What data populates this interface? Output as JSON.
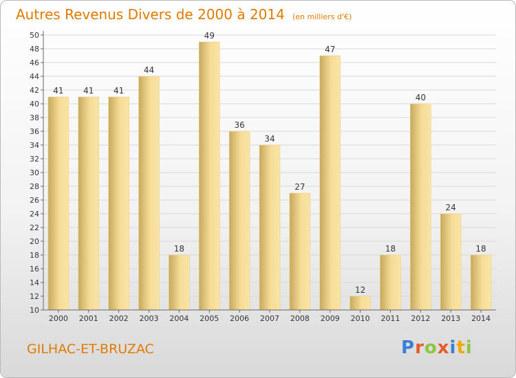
{
  "title": "Autres Revenus Divers de 2000 à 2014",
  "unit": "(en milliers d'€)",
  "commune": "GILHAC-ET-BRUZAC",
  "brand": {
    "text": "Proxiti",
    "letter_colors": [
      "#3a7fd5",
      "#e85a2a",
      "#8dc63f",
      "#e85a2a",
      "#3a7fd5",
      "#f0a800",
      "#8dc63f"
    ]
  },
  "colors": {
    "accent": "#e07b00",
    "bar_light": "#f8e19f",
    "bar_dark": "#c8ac60",
    "axis": "#666666",
    "grid": "#d8d8d8"
  },
  "chart_data": {
    "type": "bar",
    "categories": [
      "2000",
      "2001",
      "2002",
      "2003",
      "2004",
      "2005",
      "2006",
      "2007",
      "2008",
      "2009",
      "2010",
      "2011",
      "2012",
      "2013",
      "2014"
    ],
    "values": [
      41,
      41,
      41,
      44,
      18,
      49,
      36,
      34,
      27,
      47,
      12,
      18,
      40,
      24,
      18
    ],
    "title": "Autres Revenus Divers de 2000 à 2014",
    "xlabel": "",
    "ylabel": "",
    "ylim": [
      10,
      50
    ],
    "yticks": [
      10,
      12,
      14,
      16,
      18,
      20,
      22,
      24,
      26,
      28,
      30,
      32,
      34,
      36,
      38,
      40,
      42,
      44,
      46,
      48,
      50
    ],
    "grid": true,
    "data_labels": true
  }
}
